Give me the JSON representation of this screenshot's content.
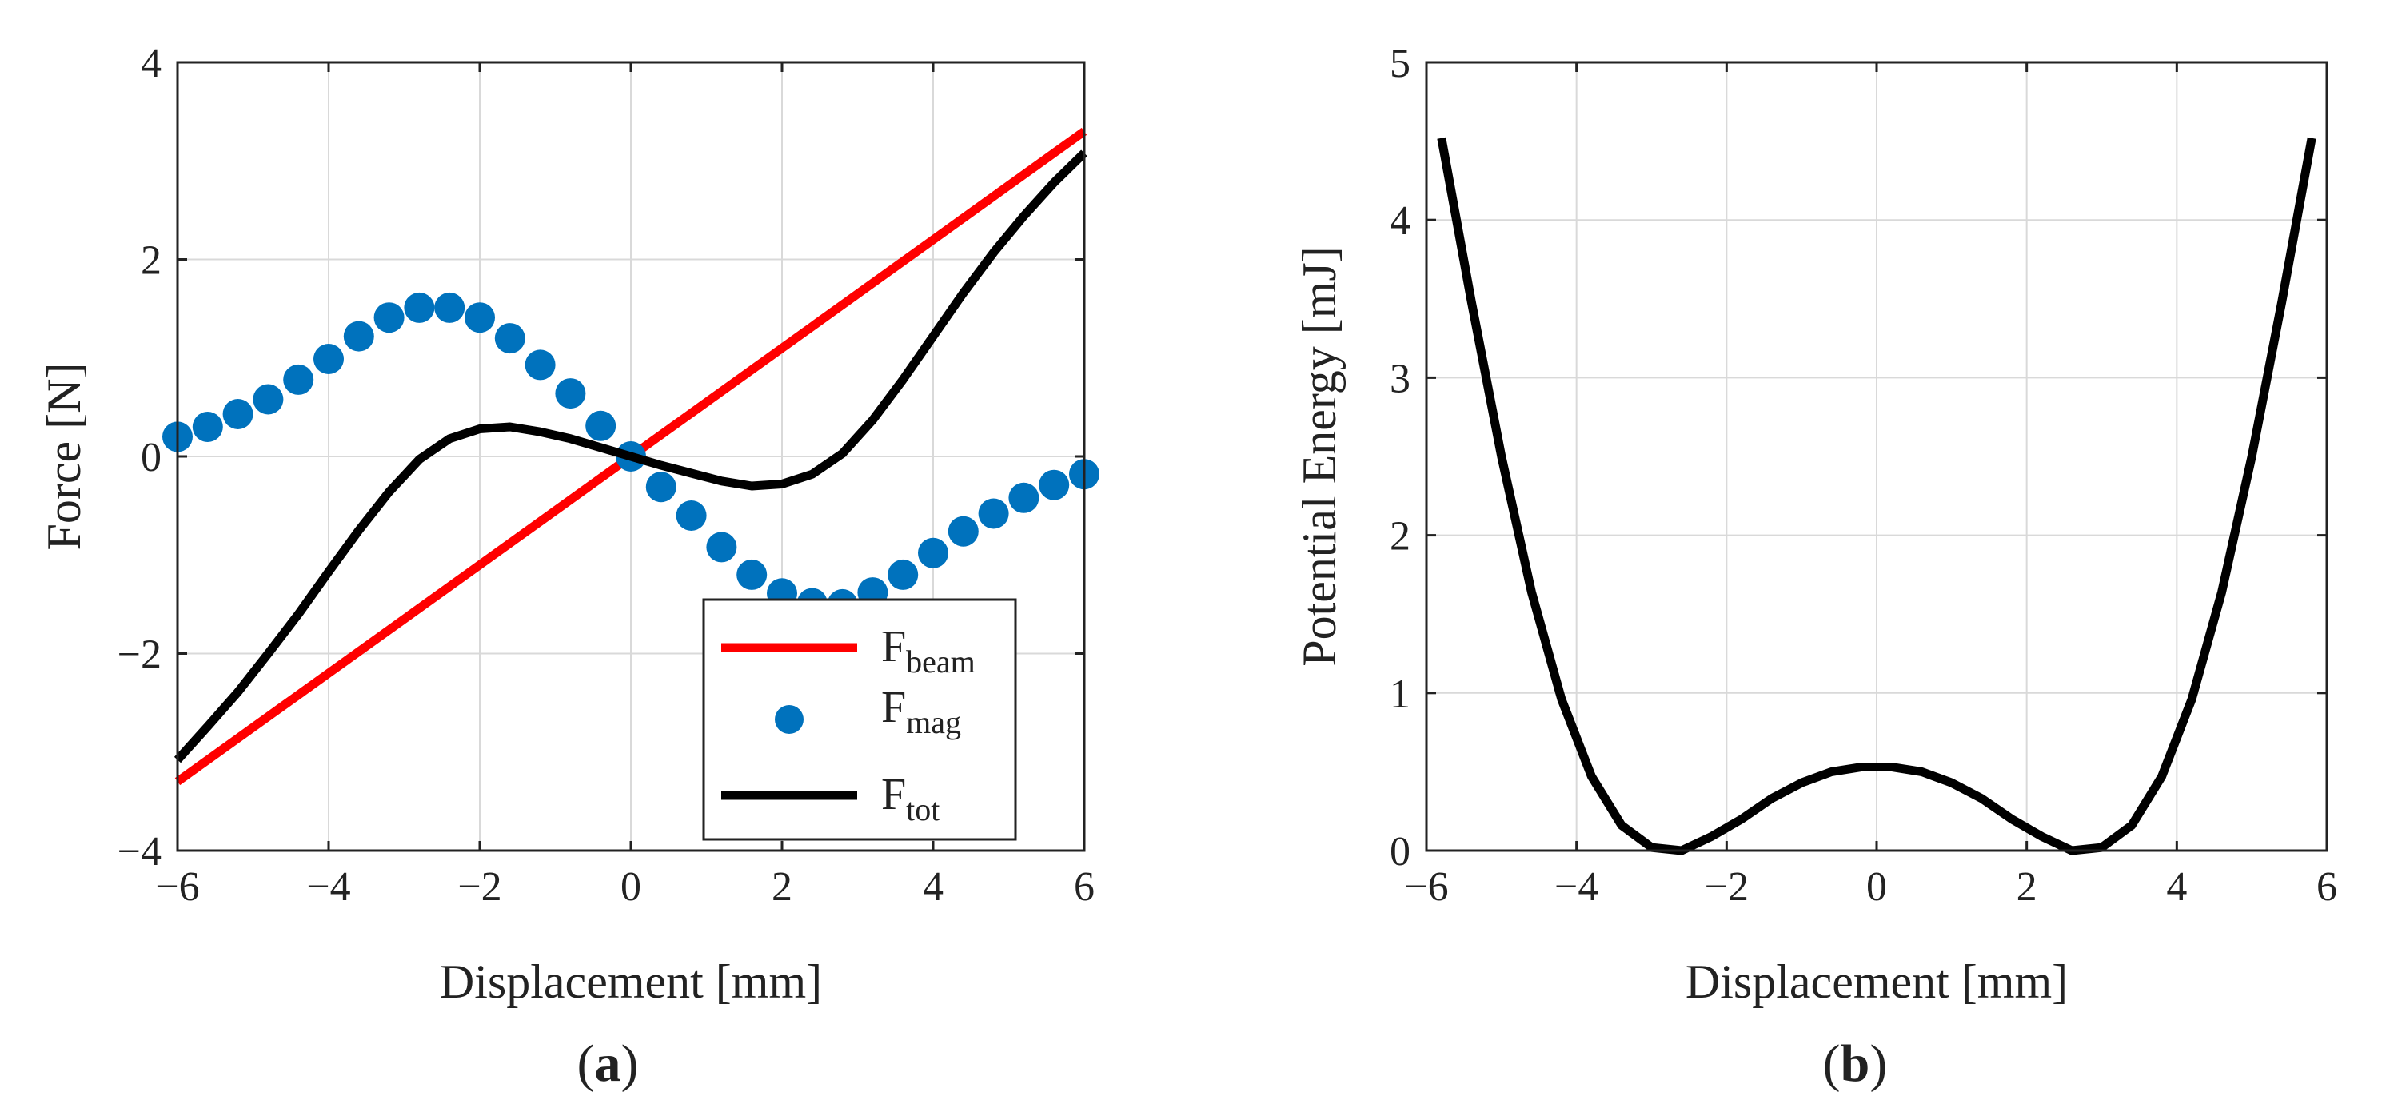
{
  "chart_data": [
    {
      "panel": "a",
      "type": "line",
      "panel_label": "a",
      "xlabel": "Displacement [mm]",
      "ylabel": "Force [N]",
      "xlim": [
        -6,
        6
      ],
      "ylim": [
        -4,
        4
      ],
      "xticks": [
        -6,
        -4,
        -2,
        0,
        2,
        4,
        6
      ],
      "yticks": [
        -4,
        -2,
        0,
        2,
        4
      ],
      "grid": true,
      "legend": "bottom-right",
      "series": [
        {
          "name": "F_beam",
          "legend_main": "F",
          "legend_sub": "beam",
          "style": "line",
          "color": "#ff0000",
          "x": [
            -6,
            6
          ],
          "y": [
            -3.3,
            3.3
          ]
        },
        {
          "name": "F_mag",
          "legend_main": "F",
          "legend_sub": "mag",
          "style": "markers",
          "color": "#0072bd",
          "x": [
            -6.0,
            -5.6,
            -5.2,
            -4.8,
            -4.4,
            -4.0,
            -3.6,
            -3.2,
            -2.8,
            -2.4,
            -2.0,
            -1.6,
            -1.2,
            -0.8,
            -0.4,
            0.0,
            0.4,
            0.8,
            1.2,
            1.6,
            2.0,
            2.4,
            2.8,
            3.2,
            3.6,
            4.0,
            4.4,
            4.8,
            5.2,
            5.6,
            6.0
          ],
          "y": [
            0.2,
            0.3,
            0.43,
            0.58,
            0.78,
            0.99,
            1.22,
            1.41,
            1.51,
            1.51,
            1.41,
            1.2,
            0.93,
            0.64,
            0.31,
            0.0,
            -0.31,
            -0.6,
            -0.92,
            -1.2,
            -1.39,
            -1.49,
            -1.5,
            -1.38,
            -1.2,
            -0.98,
            -0.76,
            -0.58,
            -0.42,
            -0.29,
            -0.18
          ]
        },
        {
          "name": "F_tot",
          "legend_main": "F",
          "legend_sub": "tot",
          "style": "line",
          "color": "#000000",
          "x": [
            -6.0,
            -5.6,
            -5.2,
            -4.8,
            -4.4,
            -4.0,
            -3.6,
            -3.2,
            -2.8,
            -2.4,
            -2.0,
            -1.6,
            -1.2,
            -0.8,
            -0.4,
            0.0,
            0.4,
            0.8,
            1.2,
            1.6,
            2.0,
            2.4,
            2.8,
            3.2,
            3.6,
            4.0,
            4.4,
            4.8,
            5.2,
            5.6,
            6.0
          ],
          "y": [
            -3.08,
            -2.74,
            -2.39,
            -2.0,
            -1.6,
            -1.17,
            -0.75,
            -0.36,
            -0.03,
            0.18,
            0.28,
            0.3,
            0.25,
            0.18,
            0.09,
            0.0,
            -0.09,
            -0.17,
            -0.25,
            -0.3,
            -0.28,
            -0.18,
            0.03,
            0.37,
            0.78,
            1.22,
            1.66,
            2.07,
            2.44,
            2.78,
            3.08
          ]
        }
      ]
    },
    {
      "panel": "b",
      "type": "line",
      "panel_label": "b",
      "xlabel": "Displacement [mm]",
      "ylabel": "Potential Energy [mJ]",
      "xlim": [
        -6,
        6
      ],
      "ylim": [
        0,
        5
      ],
      "xticks": [
        -6,
        -4,
        -2,
        0,
        2,
        4,
        6
      ],
      "yticks": [
        0,
        1,
        2,
        3,
        4,
        5
      ],
      "grid": true,
      "series": [
        {
          "name": "Potential Energy",
          "style": "line",
          "color": "#000000",
          "x": [
            -5.8,
            -5.4,
            -5.0,
            -4.6,
            -4.2,
            -3.8,
            -3.4,
            -3.0,
            -2.6,
            -2.2,
            -1.8,
            -1.4,
            -1.0,
            -0.6,
            -0.2,
            0.2,
            0.6,
            1.0,
            1.4,
            1.8,
            2.2,
            2.6,
            3.0,
            3.4,
            3.8,
            4.2,
            4.6,
            5.0,
            5.4,
            5.8
          ],
          "y": [
            4.52,
            3.48,
            2.5,
            1.64,
            0.96,
            0.47,
            0.16,
            0.02,
            0.0,
            0.09,
            0.2,
            0.33,
            0.43,
            0.5,
            0.53,
            0.53,
            0.5,
            0.43,
            0.33,
            0.2,
            0.09,
            0.0,
            0.02,
            0.16,
            0.47,
            0.96,
            1.64,
            2.5,
            3.48,
            4.52
          ]
        }
      ]
    }
  ]
}
